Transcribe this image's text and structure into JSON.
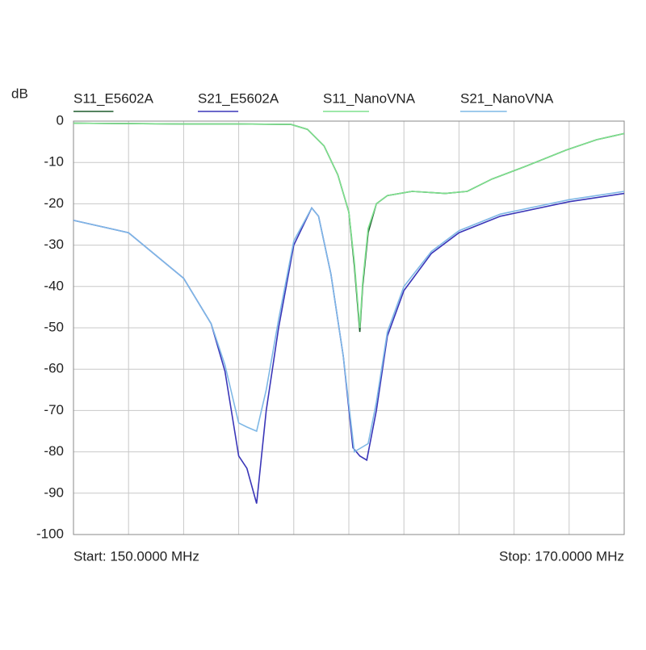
{
  "chart_data": {
    "type": "line",
    "ylabel": "dB",
    "start_label": "Start: 150.0000 MHz",
    "stop_label": "Stop: 170.0000 MHz",
    "xlim": [
      150,
      170
    ],
    "xticks": [
      150,
      152,
      154,
      156,
      158,
      160,
      162,
      164,
      166,
      168,
      170
    ],
    "ylim": [
      -100,
      0
    ],
    "yticks": [
      0,
      -10,
      -20,
      -30,
      -40,
      -50,
      -60,
      -70,
      -80,
      -90,
      -100
    ],
    "grid": true,
    "series": [
      {
        "name": "S11_E5602A",
        "color": "#1d5a2c",
        "x": [
          150,
          152,
          154,
          156,
          157.9,
          158.5,
          159.1,
          159.6,
          160.0,
          160.2,
          160.4,
          160.5,
          160.7,
          161.0,
          161.4,
          162.3,
          163.5,
          164.3,
          165.2,
          166.4,
          167.9,
          169.0,
          170
        ],
        "values": [
          -0.5,
          -0.6,
          -0.7,
          -0.7,
          -0.8,
          -2,
          -6,
          -13,
          -22,
          -35,
          -51,
          -40,
          -27,
          -20,
          -18,
          -17,
          -17.5,
          -17,
          -14,
          -11,
          -7,
          -4.5,
          -3
        ]
      },
      {
        "name": "S21_E5602A",
        "color": "#3a36b8",
        "x": [
          150,
          152,
          154,
          155,
          155.5,
          156.0,
          156.3,
          156.65,
          157.0,
          157.45,
          158.0,
          158.65,
          158.9,
          159.35,
          159.8,
          160.15,
          160.4,
          160.65,
          161.0,
          161.4,
          162.0,
          163.0,
          164.0,
          165.5,
          168.0,
          170
        ],
        "values": [
          -24,
          -27,
          -38,
          -49,
          -60.5,
          -81,
          -84,
          -92.5,
          -70,
          -50,
          -30,
          -21,
          -23,
          -37,
          -57,
          -79,
          -81,
          -82,
          -70,
          -52,
          -41,
          -32,
          -27,
          -23,
          -19.5,
          -17.5
        ]
      },
      {
        "name": "S11_NanoVNA",
        "color": "#7ee08e",
        "x": [
          150,
          152,
          154,
          156,
          157.9,
          158.5,
          159.1,
          159.6,
          160.0,
          160.2,
          160.4,
          160.5,
          160.7,
          161.0,
          161.4,
          162.3,
          163.5,
          164.3,
          165.2,
          166.4,
          167.9,
          169.0,
          170
        ],
        "values": [
          -0.5,
          -0.6,
          -0.7,
          -0.7,
          -0.8,
          -2,
          -6,
          -13,
          -22,
          -34,
          -50,
          -39,
          -26,
          -20,
          -18,
          -17,
          -17.5,
          -17,
          -14,
          -11,
          -7,
          -4.5,
          -3
        ]
      },
      {
        "name": "S21_NanoVNA",
        "color": "#7fb8e6",
        "x": [
          150,
          152,
          154,
          155,
          155.5,
          156.0,
          156.3,
          156.65,
          157.0,
          157.45,
          158.0,
          158.65,
          158.9,
          159.35,
          159.8,
          160.2,
          160.45,
          160.7,
          161.0,
          161.4,
          162.0,
          163.0,
          164.0,
          165.5,
          168.0,
          170
        ],
        "values": [
          -24,
          -27,
          -38,
          -49,
          -59,
          -73,
          -74,
          -75,
          -65,
          -48,
          -29,
          -21,
          -23,
          -37,
          -57,
          -80,
          -79,
          -78,
          -68,
          -51,
          -40,
          -31.5,
          -26.5,
          -22.5,
          -19,
          -17
        ]
      }
    ]
  }
}
